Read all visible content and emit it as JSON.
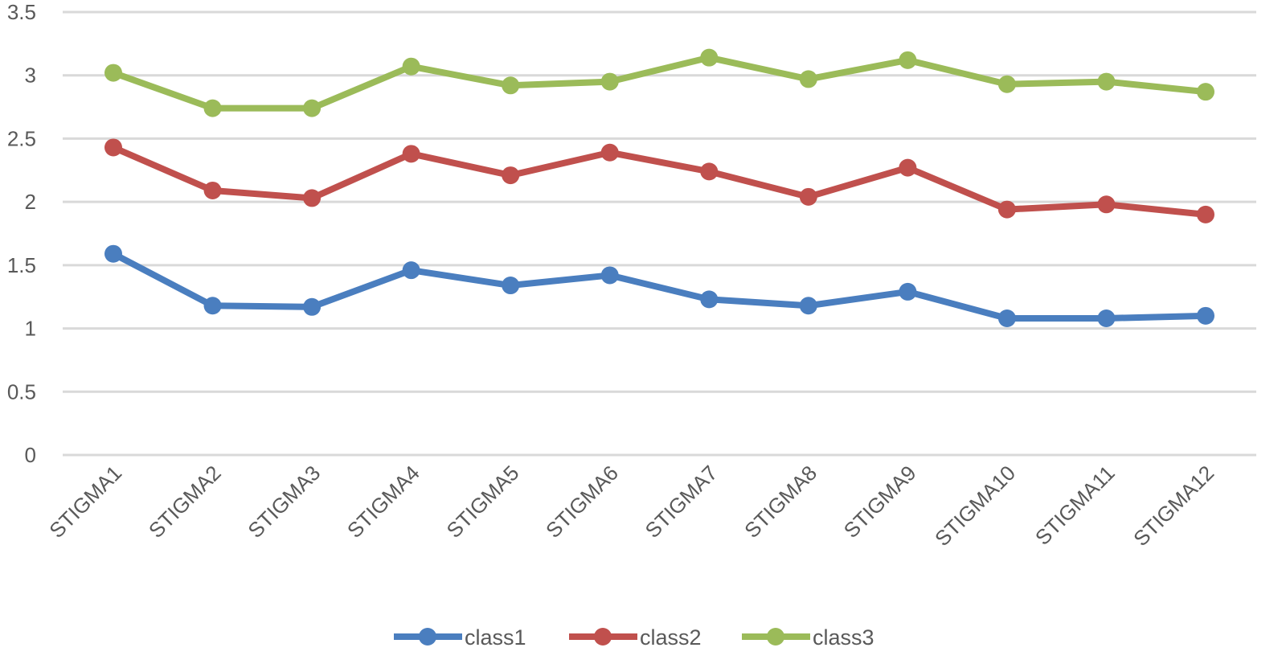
{
  "chart_data": {
    "type": "line",
    "categories": [
      "STIGMA1",
      "STIGMA2",
      "STIGMA3",
      "STIGMA4",
      "STIGMA5",
      "STIGMA6",
      "STIGMA7",
      "STIGMA8",
      "STIGMA9",
      "STIGMA10",
      "STIGMA11",
      "STIGMA12"
    ],
    "series": [
      {
        "name": "class1",
        "color": "#4a7ebf",
        "values": [
          1.59,
          1.18,
          1.17,
          1.46,
          1.34,
          1.42,
          1.23,
          1.18,
          1.29,
          1.08,
          1.08,
          1.1
        ]
      },
      {
        "name": "class2",
        "color": "#c0504d",
        "values": [
          2.43,
          2.09,
          2.03,
          2.38,
          2.21,
          2.39,
          2.24,
          2.04,
          2.27,
          1.94,
          1.98,
          1.9
        ]
      },
      {
        "name": "class3",
        "color": "#9bbb59",
        "values": [
          3.02,
          2.74,
          2.74,
          3.07,
          2.92,
          2.95,
          3.14,
          2.97,
          3.12,
          2.93,
          2.95,
          2.87
        ]
      }
    ],
    "y_ticks": [
      "0",
      "0.5",
      "1",
      "1.5",
      "2",
      "2.5",
      "3",
      "3.5"
    ],
    "ylim": [
      0,
      3.5
    ],
    "grid": true,
    "legend_position": "bottom",
    "title": "",
    "xlabel": "",
    "ylabel": ""
  }
}
